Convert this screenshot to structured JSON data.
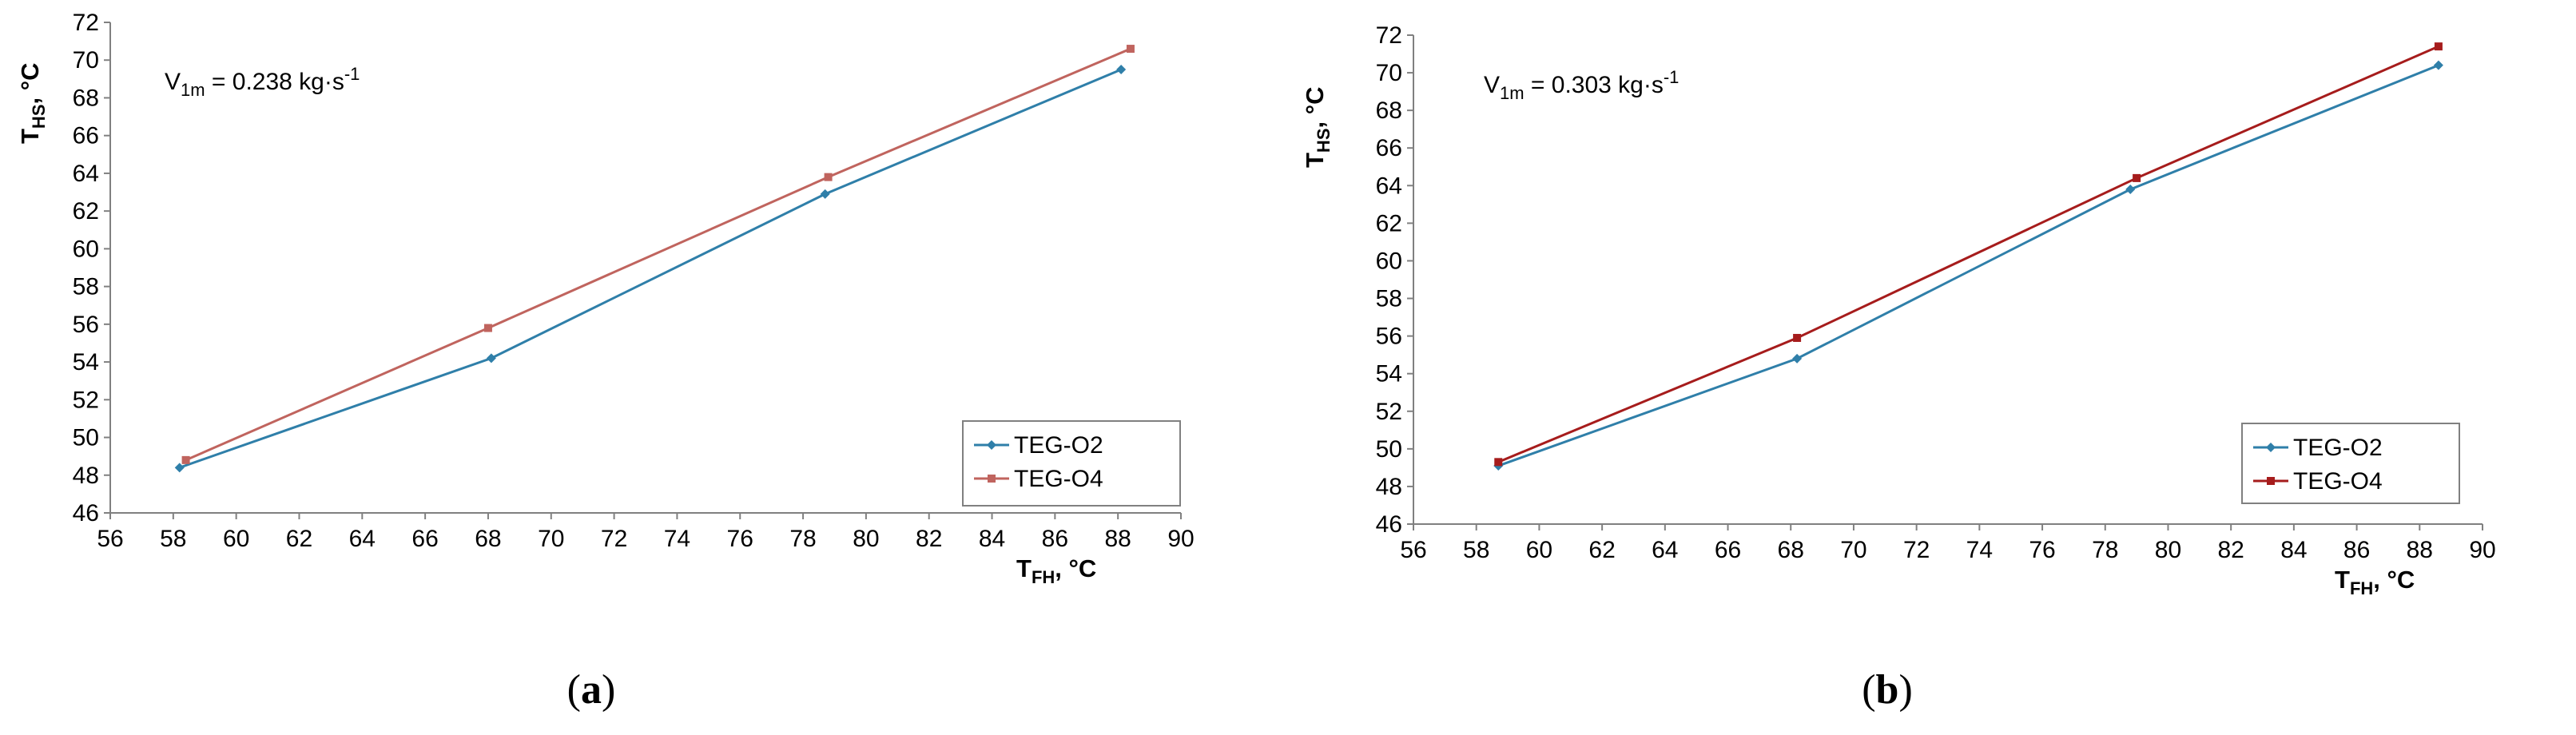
{
  "chart_data": [
    {
      "type": "line",
      "caption_letter": "a",
      "annotation": {
        "base": "V",
        "sub": "1m",
        "value": " = 0.238 kg·s",
        "sup": "-1"
      },
      "xlabel": {
        "base": "T",
        "sub": "FH",
        "unit": ", °C"
      },
      "ylabel": {
        "base": "T",
        "sub": "HS",
        "unit": ", °C"
      },
      "xlim": [
        56,
        90
      ],
      "xstep": 2,
      "ylim": [
        46,
        72
      ],
      "ystep": 2,
      "legend_position": "bottom-right",
      "series": [
        {
          "name": "TEG-O2",
          "color": "#2f7fa9",
          "marker": "diamond",
          "x": [
            58.2,
            68.1,
            78.7,
            88.1
          ],
          "y": [
            48.4,
            54.2,
            62.9,
            69.5
          ]
        },
        {
          "name": "TEG-O4",
          "color": "#c0645e",
          "marker": "square",
          "x": [
            58.4,
            68.0,
            78.8,
            88.4
          ],
          "y": [
            48.8,
            55.8,
            63.8,
            70.6
          ]
        }
      ]
    },
    {
      "type": "line",
      "caption_letter": "b",
      "annotation": {
        "base": "V",
        "sub": "1m",
        "value": " = 0.303 kg·s",
        "sup": "-1"
      },
      "xlabel": {
        "base": "T",
        "sub": "FH",
        "unit": ", °C"
      },
      "ylabel": {
        "base": "T",
        "sub": "HS",
        "unit": ", °C"
      },
      "xlim": [
        56,
        90
      ],
      "xstep": 2,
      "ylim": [
        46,
        72
      ],
      "ystep": 2,
      "legend_position": "bottom-right",
      "series": [
        {
          "name": "TEG-O2",
          "color": "#2f7fa9",
          "marker": "diamond",
          "x": [
            58.7,
            68.2,
            78.8,
            88.6
          ],
          "y": [
            49.1,
            54.8,
            63.8,
            70.4
          ]
        },
        {
          "name": "TEG-O4",
          "color": "#a61c1c",
          "marker": "square",
          "x": [
            58.7,
            68.2,
            79.0,
            88.6
          ],
          "y": [
            49.3,
            55.9,
            64.4,
            71.4
          ]
        }
      ]
    }
  ]
}
